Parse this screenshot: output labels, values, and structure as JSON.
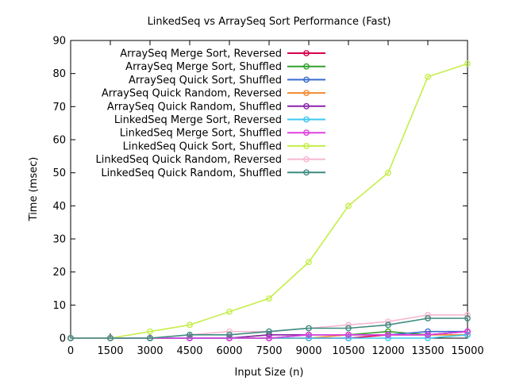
{
  "chart_data": {
    "type": "line",
    "title": "LinkedSeq vs ArraySeq Sort Performance (Fast)",
    "xlabel": "Input Size (n)",
    "ylabel": "Time (msec)",
    "xlim": [
      0,
      15000
    ],
    "ylim": [
      0,
      90
    ],
    "xticks": [
      0,
      1500,
      3000,
      4500,
      6000,
      7500,
      9000,
      10500,
      12000,
      13500,
      15000
    ],
    "yticks": [
      0,
      10,
      20,
      30,
      40,
      50,
      60,
      70,
      80,
      90
    ],
    "grid": false,
    "legend_position": "top-left",
    "x": [
      0,
      1500,
      3000,
      4500,
      6000,
      7500,
      9000,
      10500,
      12000,
      13500,
      15000
    ],
    "series": [
      {
        "name": "ArraySeq Merge Sort, Reversed",
        "color": "#d6004d",
        "values": [
          0,
          0,
          0,
          0,
          0,
          0,
          0,
          0,
          1,
          1,
          2
        ]
      },
      {
        "name": "ArraySeq Merge Sort, Shuffled",
        "color": "#33a02c",
        "values": [
          0,
          0,
          0,
          0,
          0,
          1,
          1,
          1,
          2,
          1,
          1
        ]
      },
      {
        "name": "ArraySeq Quick Sort, Shuffled",
        "color": "#3a6ccf",
        "values": [
          0,
          0,
          0,
          0,
          0,
          0,
          1,
          1,
          1,
          2,
          2
        ]
      },
      {
        "name": "ArraySeq Quick Random, Reversed",
        "color": "#f28a30",
        "values": [
          0,
          0,
          0,
          0,
          0,
          0,
          0,
          1,
          1,
          1,
          1
        ]
      },
      {
        "name": "ArraySeq Quick Random, Shuffled",
        "color": "#8e24aa",
        "values": [
          0,
          0,
          0,
          0,
          0,
          1,
          1,
          1,
          1,
          1,
          2
        ]
      },
      {
        "name": "LinkedSeq Merge Sort, Reversed",
        "color": "#3cc8f0",
        "values": [
          0,
          0,
          0,
          0,
          0,
          0,
          0,
          0,
          0,
          0,
          1
        ]
      },
      {
        "name": "LinkedSeq Merge Sort, Shuffled",
        "color": "#e040e0",
        "values": [
          0,
          0,
          0,
          0,
          0,
          0,
          1,
          1,
          1,
          1,
          2
        ]
      },
      {
        "name": "LinkedSeq Quick Sort, Shuffled",
        "color": "#c5ee4a",
        "values": [
          0,
          0,
          2,
          4,
          8,
          12,
          23,
          40,
          50,
          79,
          83
        ]
      },
      {
        "name": "LinkedSeq Quick Random, Reversed",
        "color": "#f5b8d0",
        "values": [
          0,
          0,
          0,
          1,
          2,
          2,
          3,
          4,
          5,
          7,
          7
        ]
      },
      {
        "name": "LinkedSeq Quick Random, Shuffled",
        "color": "#3d8c80",
        "values": [
          0,
          0,
          0,
          1,
          1,
          2,
          3,
          3,
          4,
          6,
          6
        ]
      }
    ]
  }
}
